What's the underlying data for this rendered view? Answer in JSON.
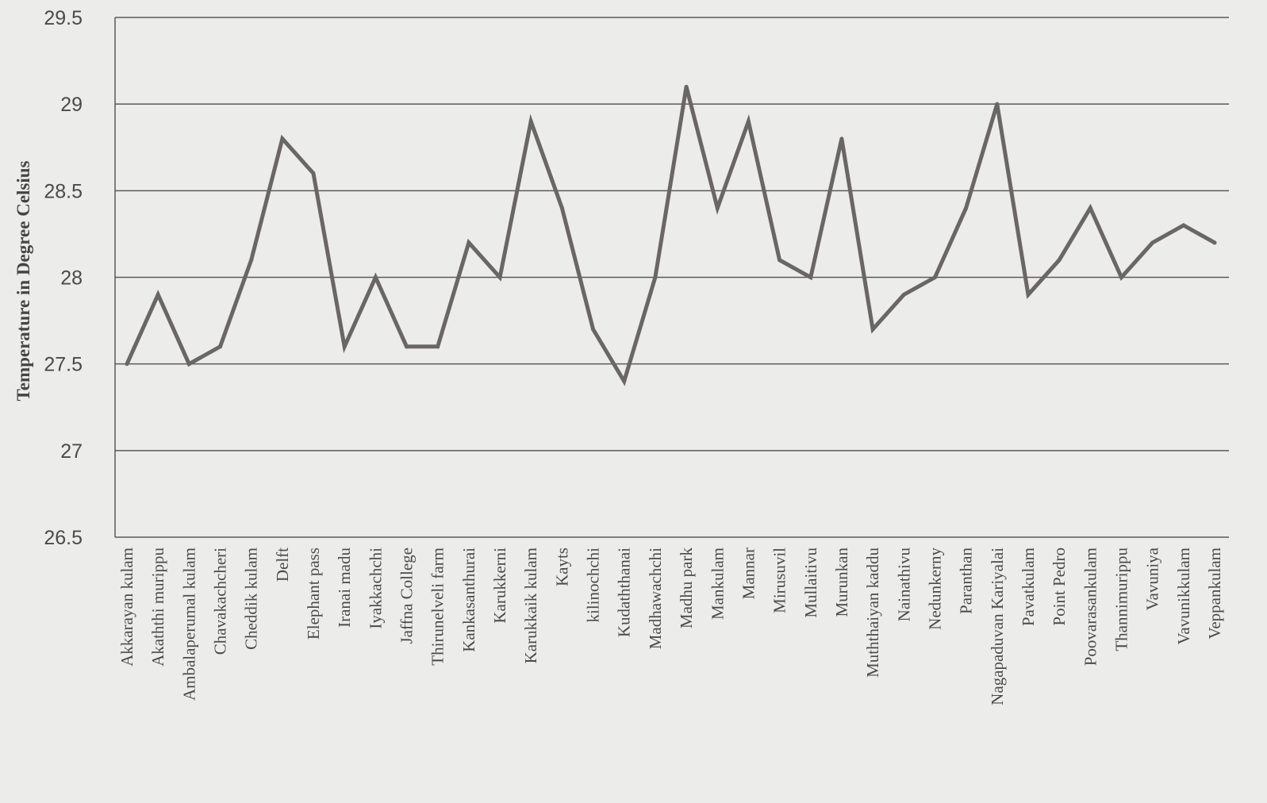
{
  "chart_data": {
    "type": "line",
    "title": "",
    "xlabel": "",
    "ylabel": "Temperature  in Degree Celsius",
    "ylim": [
      26.5,
      29.5
    ],
    "yticks": [
      "26.5",
      "27",
      "27.5",
      "28",
      "28.5",
      "29",
      "29.5"
    ],
    "grid": true,
    "categories": [
      "Akkarayan kulam",
      "Akaththi murippu",
      "Ambalaperumal kulam",
      "Chavakachcheri",
      "Cheddik kulam",
      "Delft",
      "Elephant pass",
      "Iranai madu",
      "Iyakkachchi",
      "Jaffna College",
      "Thirunelveli farm",
      "Kankasanthurai",
      "Karukkerni",
      "Karukkaik kulam",
      "Kayts",
      "kilinochchi",
      "Kudaththanai",
      "Madhawachchi",
      "Madhu park",
      "Mankulam",
      "Mannar",
      "Mirusuvil",
      "Mullaitivu",
      "Murunkan",
      "Muththaiyan kaddu",
      "Nainathivu",
      "Nedunkerny",
      "Paranthan",
      "Nagapaduvan Kariyalai",
      "Pavatkulam",
      "Point Pedro",
      "Poovarasankulam",
      "Thannimurippu",
      "Vavuniya",
      "Vavunikkulam",
      "Veppankulam"
    ],
    "series": [
      {
        "values": [
          27.5,
          27.9,
          27.5,
          27.6,
          28.1,
          28.8,
          28.6,
          27.6,
          28.0,
          27.6,
          27.6,
          28.2,
          28.0,
          28.9,
          28.4,
          27.7,
          27.4,
          28.0,
          29.1,
          28.4,
          28.9,
          28.1,
          28.0,
          28.8,
          27.7,
          27.9,
          28.0,
          28.4,
          29.0,
          27.9,
          28.1,
          28.4,
          28.0,
          28.2,
          28.3,
          28.2
        ],
        "color": "#6b6666"
      }
    ]
  }
}
